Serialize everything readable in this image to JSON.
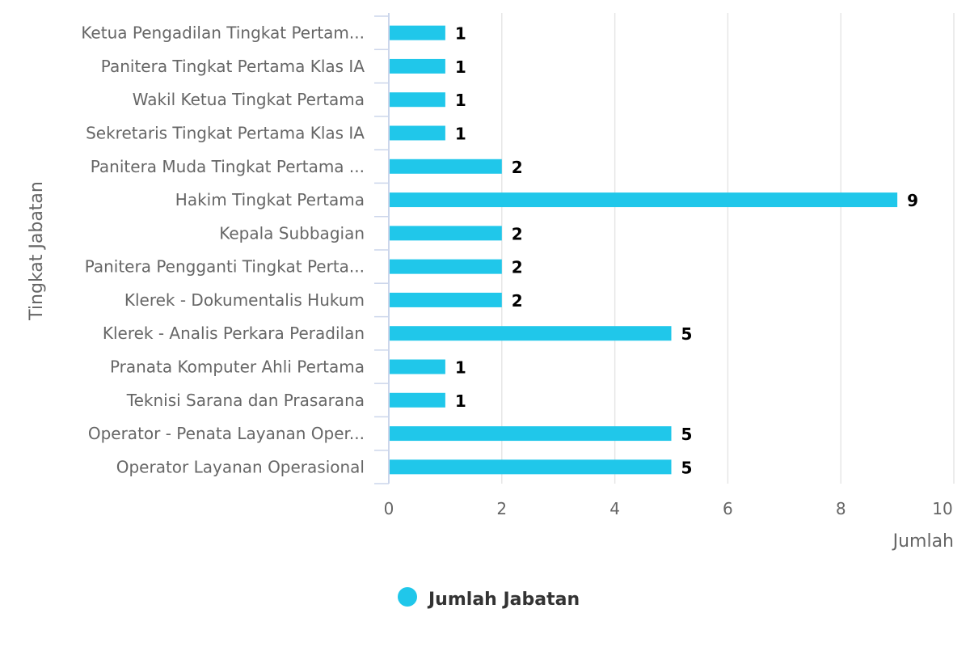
{
  "chart_data": {
    "type": "bar",
    "orientation": "horizontal",
    "categories": [
      "Ketua Pengadilan Tingkat Pertam...",
      "Panitera Tingkat Pertama Klas IA",
      "Wakil Ketua Tingkat Pertama",
      "Sekretaris Tingkat Pertama Klas IA",
      "Panitera Muda Tingkat Pertama ...",
      "Hakim Tingkat Pertama",
      "Kepala Subbagian",
      "Panitera Pengganti Tingkat Perta...",
      "Klerek - Dokumentalis Hukum",
      "Klerek - Analis Perkara Peradilan",
      "Pranata Komputer Ahli Pertama",
      "Teknisi Sarana dan Prasarana",
      "Operator - Penata Layanan Oper...",
      "Operator Layanan Operasional"
    ],
    "series": [
      {
        "name": "Jumlah Jabatan",
        "color": "#20c7ea",
        "values": [
          1,
          1,
          1,
          1,
          2,
          9,
          2,
          2,
          2,
          5,
          1,
          1,
          5,
          5
        ]
      }
    ],
    "xlabel": "Jumlah",
    "ylabel": "Tingkat Jabatan",
    "xlim": [
      0,
      10
    ],
    "xticks": [
      "0",
      "2",
      "4",
      "6",
      "8",
      "10"
    ],
    "grid": true,
    "legend_position": "bottom-center"
  },
  "colors": {
    "bar": "#20c7ea",
    "grid": "#e6e6e6",
    "axis": "#ccd6eb"
  }
}
